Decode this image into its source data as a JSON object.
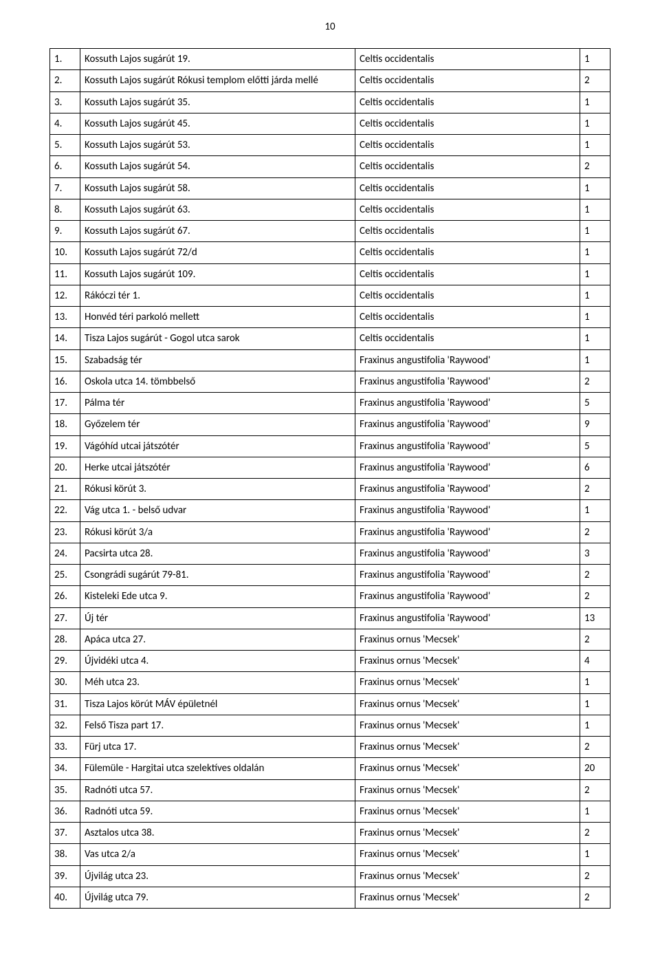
{
  "page_number": "10",
  "rows": [
    {
      "n": "1.",
      "loc": "Kossuth Lajos sugárút 19.",
      "sp": "Celtis occidentalis",
      "q": "1"
    },
    {
      "n": "2.",
      "loc": "Kossuth Lajos sugárút Rókusi templom előtti járda mellé",
      "sp": "Celtis occidentalis",
      "q": "2"
    },
    {
      "n": "3.",
      "loc": "Kossuth Lajos sugárút 35.",
      "sp": "Celtis occidentalis",
      "q": "1"
    },
    {
      "n": "4.",
      "loc": "Kossuth Lajos sugárút 45.",
      "sp": "Celtis occidentalis",
      "q": "1"
    },
    {
      "n": "5.",
      "loc": "Kossuth Lajos sugárút 53.",
      "sp": "Celtis occidentalis",
      "q": "1"
    },
    {
      "n": "6.",
      "loc": "Kossuth Lajos sugárút 54.",
      "sp": "Celtis occidentalis",
      "q": "2"
    },
    {
      "n": "7.",
      "loc": "Kossuth Lajos sugárút 58.",
      "sp": "Celtis occidentalis",
      "q": "1"
    },
    {
      "n": "8.",
      "loc": "Kossuth Lajos sugárút 63.",
      "sp": "Celtis occidentalis",
      "q": "1"
    },
    {
      "n": "9.",
      "loc": "Kossuth Lajos sugárút 67.",
      "sp": "Celtis occidentalis",
      "q": "1"
    },
    {
      "n": "10.",
      "loc": "Kossuth Lajos sugárút 72/d",
      "sp": "Celtis occidentalis",
      "q": "1"
    },
    {
      "n": "11.",
      "loc": "Kossuth Lajos sugárút 109.",
      "sp": "Celtis occidentalis",
      "q": "1"
    },
    {
      "n": "12.",
      "loc": "Rákóczi tér 1.",
      "sp": "Celtis occidentalis",
      "q": "1"
    },
    {
      "n": "13.",
      "loc": "Honvéd téri parkoló mellett",
      "sp": "Celtis occidentalis",
      "q": "1"
    },
    {
      "n": "14.",
      "loc": "Tisza Lajos sugárút - Gogol utca sarok",
      "sp": "Celtis occidentalis",
      "q": "1"
    },
    {
      "n": "15.",
      "loc": "Szabadság tér",
      "sp": "Fraxinus angustifolia 'Raywood'",
      "q": "1"
    },
    {
      "n": "16.",
      "loc": "Oskola utca 14. tömbbelső",
      "sp": "Fraxinus angustifolia 'Raywood'",
      "q": "2"
    },
    {
      "n": "17.",
      "loc": "Pálma tér",
      "sp": "Fraxinus angustifolia 'Raywood'",
      "q": "5"
    },
    {
      "n": "18.",
      "loc": "Győzelem tér",
      "sp": "Fraxinus angustifolia 'Raywood'",
      "q": "9"
    },
    {
      "n": "19.",
      "loc": "Vágóhíd utcai játszótér",
      "sp": "Fraxinus angustifolia 'Raywood'",
      "q": "5"
    },
    {
      "n": "20.",
      "loc": "Herke utcai játszótér",
      "sp": "Fraxinus angustifolia 'Raywood'",
      "q": "6"
    },
    {
      "n": "21.",
      "loc": "Rókusi körút 3.",
      "sp": "Fraxinus angustifolia 'Raywood'",
      "q": "2"
    },
    {
      "n": "22.",
      "loc": "Vág utca 1. - belső udvar",
      "sp": "Fraxinus angustifolia 'Raywood'",
      "q": "1"
    },
    {
      "n": "23.",
      "loc": "Rókusi körút 3/a",
      "sp": "Fraxinus angustifolia 'Raywood'",
      "q": "2"
    },
    {
      "n": "24.",
      "loc": "Pacsirta utca 28.",
      "sp": "Fraxinus angustifolia 'Raywood'",
      "q": "3"
    },
    {
      "n": "25.",
      "loc": "Csongrádi sugárút 79-81.",
      "sp": "Fraxinus angustifolia 'Raywood'",
      "q": "2"
    },
    {
      "n": "26.",
      "loc": "Kisteleki Ede utca 9.",
      "sp": "Fraxinus angustifolia 'Raywood'",
      "q": "2"
    },
    {
      "n": "27.",
      "loc": "Új tér",
      "sp": "Fraxinus angustifolia 'Raywood'",
      "q": "13"
    },
    {
      "n": "28.",
      "loc": "Apáca utca 27.",
      "sp": "Fraxinus ornus 'Mecsek'",
      "q": "2"
    },
    {
      "n": "29.",
      "loc": "Újvidéki utca 4.",
      "sp": "Fraxinus ornus 'Mecsek'",
      "q": "4"
    },
    {
      "n": "30.",
      "loc": "Méh utca 23.",
      "sp": "Fraxinus ornus 'Mecsek'",
      "q": "1"
    },
    {
      "n": "31.",
      "loc": "Tisza Lajos körút MÁV épületnél",
      "sp": "Fraxinus ornus 'Mecsek'",
      "q": "1"
    },
    {
      "n": "32.",
      "loc": "Felső Tisza part 17.",
      "sp": "Fraxinus ornus 'Mecsek'",
      "q": "1"
    },
    {
      "n": "33.",
      "loc": "Fürj utca 17.",
      "sp": "Fraxinus ornus 'Mecsek'",
      "q": "2"
    },
    {
      "n": "34.",
      "loc": "Fülemüle - Hargitai utca szelektíves oldalán",
      "sp": "Fraxinus ornus 'Mecsek'",
      "q": "20"
    },
    {
      "n": "35.",
      "loc": "Radnóti utca 57.",
      "sp": "Fraxinus ornus 'Mecsek'",
      "q": "2"
    },
    {
      "n": "36.",
      "loc": "Radnóti utca 59.",
      "sp": "Fraxinus ornus 'Mecsek'",
      "q": "1"
    },
    {
      "n": "37.",
      "loc": "Asztalos utca 38.",
      "sp": "Fraxinus ornus 'Mecsek'",
      "q": "2"
    },
    {
      "n": "38.",
      "loc": "Vas utca 2/a",
      "sp": "Fraxinus ornus 'Mecsek'",
      "q": "1"
    },
    {
      "n": "39.",
      "loc": "Újvilág utca 23.",
      "sp": "Fraxinus ornus 'Mecsek'",
      "q": "2"
    },
    {
      "n": "40.",
      "loc": "Újvilág utca 79.",
      "sp": "Fraxinus ornus 'Mecsek'",
      "q": "2"
    }
  ]
}
